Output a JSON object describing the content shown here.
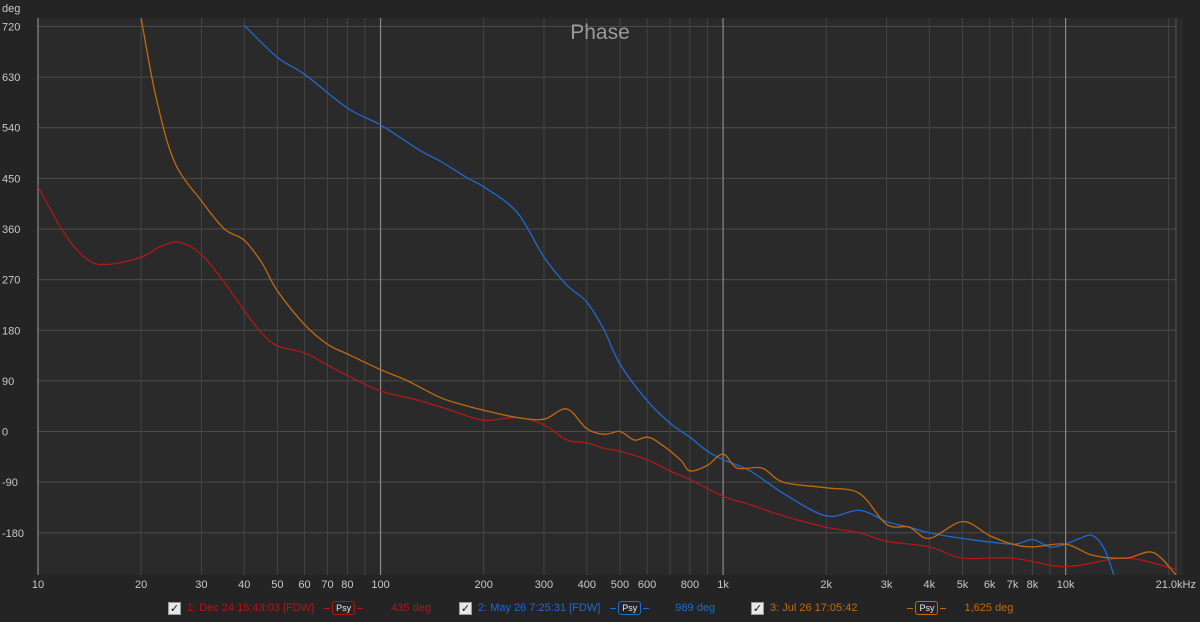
{
  "chart_data": {
    "type": "line",
    "title": "Phase",
    "yunit": "deg",
    "xunit": "kHz",
    "xscale": "log",
    "xlim": [
      10,
      21000
    ],
    "ylim": [
      -255,
      735
    ],
    "grid": true,
    "y_ticks": [
      "720",
      "630",
      "540",
      "450",
      "360",
      "270",
      "180",
      "90",
      "0",
      "-90",
      "-180"
    ],
    "y_tick_values": [
      720,
      630,
      540,
      450,
      360,
      270,
      180,
      90,
      0,
      -90,
      -180
    ],
    "x_ticks": [
      {
        "v": 10,
        "label": "10"
      },
      {
        "v": 20,
        "label": "20"
      },
      {
        "v": 30,
        "label": "30"
      },
      {
        "v": 40,
        "label": "40"
      },
      {
        "v": 50,
        "label": "50"
      },
      {
        "v": 60,
        "label": "60"
      },
      {
        "v": 70,
        "label": "70"
      },
      {
        "v": 80,
        "label": "80"
      },
      {
        "v": 100,
        "label": "100"
      },
      {
        "v": 200,
        "label": "200"
      },
      {
        "v": 300,
        "label": "300"
      },
      {
        "v": 400,
        "label": "400"
      },
      {
        "v": 500,
        "label": "500"
      },
      {
        "v": 600,
        "label": "600"
      },
      {
        "v": 800,
        "label": "800"
      },
      {
        "v": 1000,
        "label": "1k"
      },
      {
        "v": 2000,
        "label": "2k"
      },
      {
        "v": 3000,
        "label": "3k"
      },
      {
        "v": 4000,
        "label": "4k"
      },
      {
        "v": 5000,
        "label": "5k"
      },
      {
        "v": 6000,
        "label": "6k"
      },
      {
        "v": 7000,
        "label": "7k"
      },
      {
        "v": 8000,
        "label": "8k"
      },
      {
        "v": 10000,
        "label": "10k"
      },
      {
        "v": 21000,
        "label": "21.0kHz"
      }
    ],
    "series": [
      {
        "name": "1: Dec 24 15:43:03 [FDW]",
        "color": "#b01818",
        "psy": "Psy",
        "value_label": "435 deg",
        "points": [
          [
            10,
            435
          ],
          [
            12,
            350
          ],
          [
            14,
            305
          ],
          [
            16,
            297
          ],
          [
            20,
            310
          ],
          [
            23,
            330
          ],
          [
            26,
            336
          ],
          [
            30,
            315
          ],
          [
            35,
            265
          ],
          [
            40,
            215
          ],
          [
            45,
            175
          ],
          [
            50,
            152
          ],
          [
            60,
            140
          ],
          [
            70,
            118
          ],
          [
            80,
            100
          ],
          [
            100,
            72
          ],
          [
            130,
            55
          ],
          [
            160,
            38
          ],
          [
            200,
            20
          ],
          [
            250,
            25
          ],
          [
            300,
            12
          ],
          [
            350,
            -15
          ],
          [
            400,
            -20
          ],
          [
            450,
            -30
          ],
          [
            500,
            -35
          ],
          [
            600,
            -50
          ],
          [
            700,
            -70
          ],
          [
            800,
            -85
          ],
          [
            1000,
            -115
          ],
          [
            1200,
            -130
          ],
          [
            1500,
            -150
          ],
          [
            2000,
            -170
          ],
          [
            2500,
            -180
          ],
          [
            3000,
            -195
          ],
          [
            4000,
            -205
          ],
          [
            5000,
            -225
          ],
          [
            7000,
            -225
          ],
          [
            10000,
            -240
          ],
          [
            15000,
            -225
          ],
          [
            21000,
            -245
          ]
        ]
      },
      {
        "name": "2: May 26 7:25:31 [FDW]",
        "color": "#1e6ad0",
        "psy": "Psy",
        "value_label": "989 deg",
        "points": [
          [
            40,
            722
          ],
          [
            50,
            665
          ],
          [
            60,
            635
          ],
          [
            80,
            575
          ],
          [
            100,
            545
          ],
          [
            130,
            500
          ],
          [
            150,
            480
          ],
          [
            180,
            450
          ],
          [
            200,
            435
          ],
          [
            250,
            390
          ],
          [
            300,
            310
          ],
          [
            350,
            260
          ],
          [
            400,
            230
          ],
          [
            450,
            180
          ],
          [
            500,
            120
          ],
          [
            600,
            55
          ],
          [
            700,
            15
          ],
          [
            800,
            -10
          ],
          [
            900,
            -35
          ],
          [
            1000,
            -50
          ],
          [
            1200,
            -70
          ],
          [
            1500,
            -110
          ],
          [
            2000,
            -150
          ],
          [
            2500,
            -140
          ],
          [
            3000,
            -160
          ],
          [
            3500,
            -170
          ],
          [
            4000,
            -180
          ],
          [
            5000,
            -190
          ],
          [
            7000,
            -200
          ],
          [
            8000,
            -192
          ],
          [
            9000,
            -205
          ],
          [
            10000,
            -200
          ],
          [
            11000,
            -190
          ],
          [
            12000,
            -185
          ],
          [
            13000,
            -210
          ],
          [
            14000,
            -265
          ]
        ]
      },
      {
        "name": "3: Jul 26 17:05:42",
        "color": "#c06a10",
        "psy": "Psy",
        "value_label": "1,625 deg",
        "points": [
          [
            20,
            735
          ],
          [
            22,
            600
          ],
          [
            25,
            480
          ],
          [
            30,
            410
          ],
          [
            35,
            360
          ],
          [
            40,
            340
          ],
          [
            45,
            300
          ],
          [
            50,
            250
          ],
          [
            60,
            190
          ],
          [
            70,
            155
          ],
          [
            80,
            138
          ],
          [
            100,
            110
          ],
          [
            120,
            90
          ],
          [
            150,
            60
          ],
          [
            180,
            45
          ],
          [
            200,
            38
          ],
          [
            250,
            25
          ],
          [
            300,
            22
          ],
          [
            350,
            40
          ],
          [
            400,
            5
          ],
          [
            450,
            -5
          ],
          [
            500,
            0
          ],
          [
            550,
            -15
          ],
          [
            600,
            -10
          ],
          [
            650,
            -20
          ],
          [
            750,
            -50
          ],
          [
            800,
            -70
          ],
          [
            900,
            -60
          ],
          [
            1000,
            -40
          ],
          [
            1100,
            -65
          ],
          [
            1300,
            -65
          ],
          [
            1500,
            -90
          ],
          [
            2000,
            -100
          ],
          [
            2500,
            -110
          ],
          [
            3000,
            -165
          ],
          [
            3500,
            -170
          ],
          [
            4000,
            -190
          ],
          [
            5000,
            -160
          ],
          [
            6000,
            -185
          ],
          [
            7000,
            -200
          ],
          [
            8000,
            -205
          ],
          [
            10000,
            -200
          ],
          [
            12000,
            -220
          ],
          [
            15000,
            -225
          ],
          [
            18000,
            -215
          ],
          [
            21000,
            -255
          ]
        ]
      }
    ]
  }
}
